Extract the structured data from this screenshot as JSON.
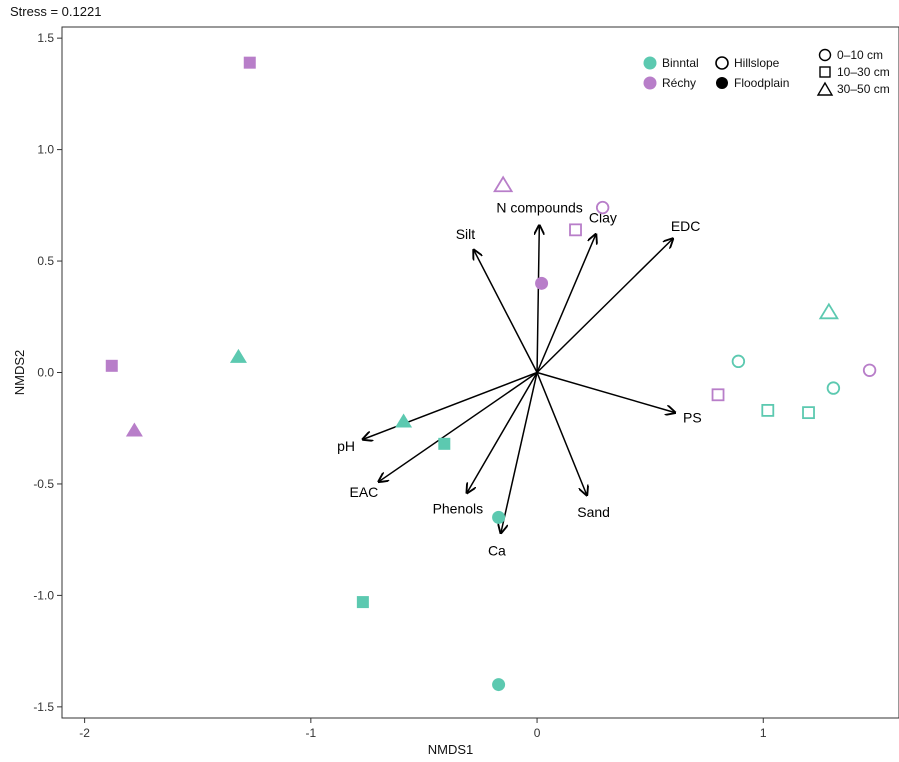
{
  "chart_data": {
    "type": "scatter",
    "subtitle": "Stress = 0.1221",
    "xlabel": "NMDS1",
    "ylabel": "NMDS2",
    "xlim": [
      -2.1,
      1.6
    ],
    "ylim": [
      -1.55,
      1.55
    ],
    "x_ticks": [
      -2,
      -1,
      0,
      1
    ],
    "x_tick_labels": [
      "-2",
      "-1",
      "0",
      "1"
    ],
    "y_ticks": [
      -1.5,
      -1.0,
      -0.5,
      0.0,
      0.5,
      1.0,
      1.5
    ],
    "y_tick_labels": [
      "-1.5",
      "-1.0",
      "-0.5",
      "0.0",
      "0.5",
      "1.0",
      "1.5"
    ],
    "grid": false,
    "legend_position": "top-right",
    "colors": {
      "Binntal": "#5cc9b0",
      "Réchy": "#b87ec9"
    },
    "legend": {
      "site": {
        "entries": [
          {
            "label": "Binntal",
            "color": "#5cc9b0"
          },
          {
            "label": "Réchy",
            "color": "#b87ec9"
          }
        ]
      },
      "position": {
        "entries": [
          {
            "label": "Hillslope",
            "fill": "open"
          },
          {
            "label": "Floodplain",
            "fill": "filled"
          }
        ]
      },
      "depth": {
        "entries": [
          {
            "label": "0–10 cm",
            "shape": "circle"
          },
          {
            "label": "10–30 cm",
            "shape": "square"
          },
          {
            "label": "30–50 cm",
            "shape": "triangle"
          }
        ]
      }
    },
    "points": [
      {
        "site": "Réchy",
        "position": "Floodplain",
        "depth": "10–30 cm",
        "x": -1.27,
        "y": 1.39
      },
      {
        "site": "Réchy",
        "position": "Floodplain",
        "depth": "10–30 cm",
        "x": -1.88,
        "y": 0.03
      },
      {
        "site": "Réchy",
        "position": "Floodplain",
        "depth": "30–50 cm",
        "x": -1.78,
        "y": -0.26
      },
      {
        "site": "Binntal",
        "position": "Floodplain",
        "depth": "30–50 cm",
        "x": -1.32,
        "y": 0.07
      },
      {
        "site": "Binntal",
        "position": "Floodplain",
        "depth": "30–50 cm",
        "x": -0.59,
        "y": -0.22
      },
      {
        "site": "Binntal",
        "position": "Floodplain",
        "depth": "10–30 cm",
        "x": -0.41,
        "y": -0.32
      },
      {
        "site": "Binntal",
        "position": "Floodplain",
        "depth": "10–30 cm",
        "x": -0.77,
        "y": -1.03
      },
      {
        "site": "Binntal",
        "position": "Floodplain",
        "depth": "0–10 cm",
        "x": -0.17,
        "y": -1.4
      },
      {
        "site": "Binntal",
        "position": "Floodplain",
        "depth": "0–10 cm",
        "x": -0.17,
        "y": -0.65
      },
      {
        "site": "Réchy",
        "position": "Floodplain",
        "depth": "0–10 cm",
        "x": 0.02,
        "y": 0.4
      },
      {
        "site": "Réchy",
        "position": "Hillslope",
        "depth": "30–50 cm",
        "x": -0.15,
        "y": 0.84
      },
      {
        "site": "Réchy",
        "position": "Hillslope",
        "depth": "0–10 cm",
        "x": 0.29,
        "y": 0.74
      },
      {
        "site": "Réchy",
        "position": "Hillslope",
        "depth": "10–30 cm",
        "x": 0.17,
        "y": 0.64
      },
      {
        "site": "Réchy",
        "position": "Hillslope",
        "depth": "10–30 cm",
        "x": 0.8,
        "y": -0.1
      },
      {
        "site": "Binntal",
        "position": "Hillslope",
        "depth": "0–10 cm",
        "x": 0.89,
        "y": 0.05
      },
      {
        "site": "Binntal",
        "position": "Hillslope",
        "depth": "10–30 cm",
        "x": 1.02,
        "y": -0.17
      },
      {
        "site": "Binntal",
        "position": "Hillslope",
        "depth": "10–30 cm",
        "x": 1.2,
        "y": -0.18
      },
      {
        "site": "Binntal",
        "position": "Hillslope",
        "depth": "0–10 cm",
        "x": 1.31,
        "y": -0.07
      },
      {
        "site": "Binntal",
        "position": "Hillslope",
        "depth": "30–50 cm",
        "x": 1.29,
        "y": 0.27
      },
      {
        "site": "Réchy",
        "position": "Hillslope",
        "depth": "0–10 cm",
        "x": 1.47,
        "y": 0.01
      }
    ],
    "vectors": [
      {
        "label": "N compounds",
        "x": 0.01,
        "y": 0.66
      },
      {
        "label": "Clay",
        "x": 0.26,
        "y": 0.62
      },
      {
        "label": "EDC",
        "x": 0.6,
        "y": 0.6
      },
      {
        "label": "Silt",
        "x": -0.28,
        "y": 0.55
      },
      {
        "label": "PS",
        "x": 0.61,
        "y": -0.18
      },
      {
        "label": "Sand",
        "x": 0.22,
        "y": -0.55
      },
      {
        "label": "Ca",
        "x": -0.16,
        "y": -0.72
      },
      {
        "label": "Phenols",
        "x": -0.31,
        "y": -0.54
      },
      {
        "label": "EAC",
        "x": -0.7,
        "y": -0.49
      },
      {
        "label": "pH",
        "x": -0.77,
        "y": -0.3
      }
    ]
  }
}
